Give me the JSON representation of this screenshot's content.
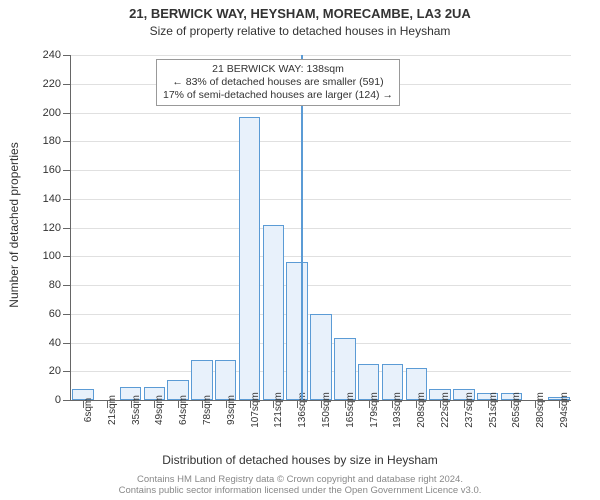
{
  "chart": {
    "type": "histogram",
    "title": "21, BERWICK WAY, HEYSHAM, MORECAMBE, LA3 2UA",
    "subtitle": "Size of property relative to detached houses in Heysham",
    "ylabel": "Number of detached properties",
    "xlabel": "Distribution of detached houses by size in Heysham",
    "ylim": [
      0,
      240
    ],
    "ytick_step": 20,
    "bar_fill": "#e8f1fb",
    "bar_stroke": "#5b9bd5",
    "grid_color": "#e0e0e0",
    "background_color": "#ffffff",
    "x_categories": [
      "6sqm",
      "21sqm",
      "35sqm",
      "49sqm",
      "64sqm",
      "78sqm",
      "93sqm",
      "107sqm",
      "121sqm",
      "136sqm",
      "150sqm",
      "165sqm",
      "179sqm",
      "193sqm",
      "208sqm",
      "222sqm",
      "237sqm",
      "251sqm",
      "265sqm",
      "280sqm",
      "294sqm"
    ],
    "values": [
      8,
      0,
      9,
      9,
      14,
      28,
      28,
      197,
      122,
      96,
      60,
      43,
      25,
      25,
      22,
      8,
      8,
      5,
      5,
      0,
      2
    ],
    "marker_x_index": 9.15,
    "marker_color": "#5b9bd5",
    "annotation": {
      "line1": "21 BERWICK WAY: 138sqm",
      "line2": "← 83% of detached houses are smaller (591)",
      "line3": "17% of semi-detached houses are larger (124) →"
    },
    "footer_line1": "Contains HM Land Registry data © Crown copyright and database right 2024.",
    "footer_line2": "Contains public sector information licensed under the Open Government Licence v3.0."
  }
}
